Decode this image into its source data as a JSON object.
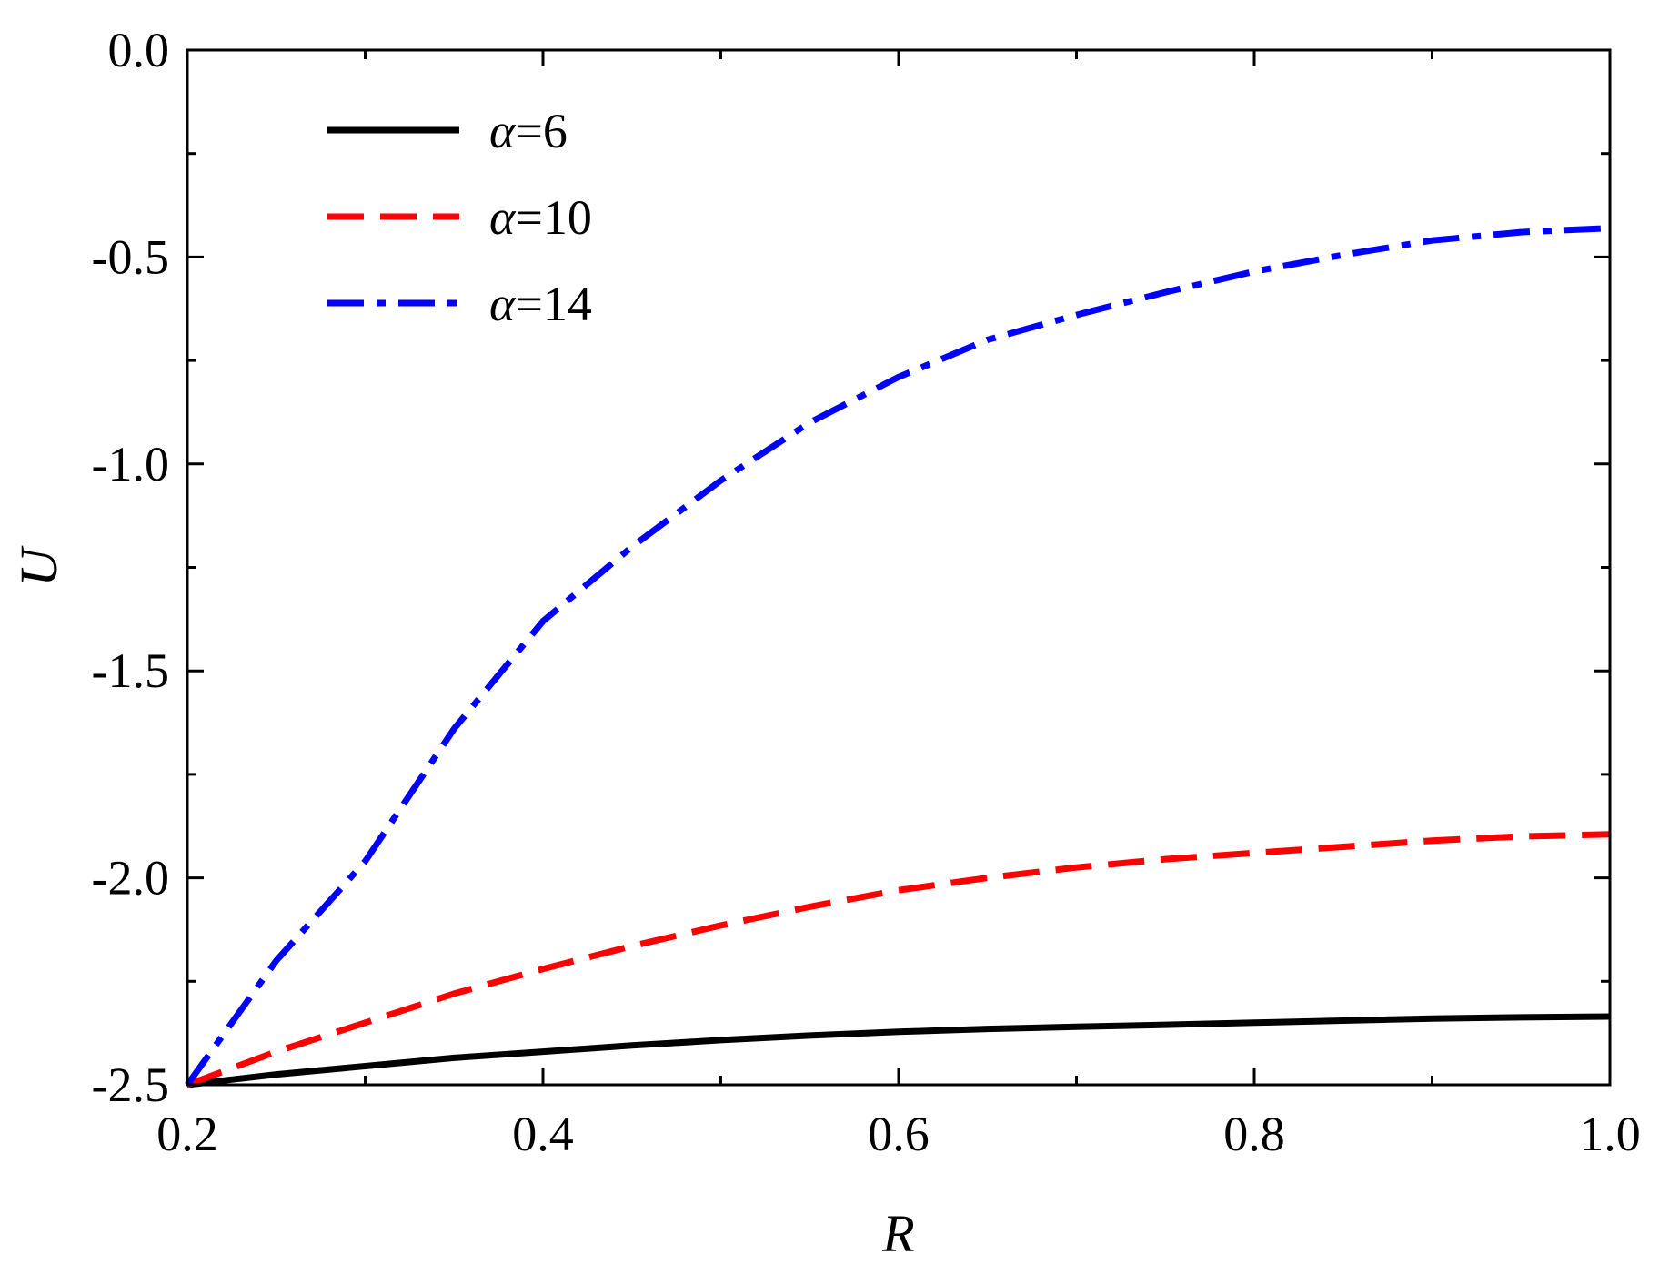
{
  "chart_data": {
    "type": "line",
    "xlabel": "R",
    "ylabel": "U",
    "xlim": [
      0.2,
      1.0
    ],
    "ylim": [
      -2.5,
      0.0
    ],
    "x_ticks": [
      "0.2",
      "0.4",
      "0.6",
      "0.8",
      "1.0"
    ],
    "y_ticks": [
      "0.0",
      "-0.5",
      "-1.0",
      "-1.5",
      "-2.0",
      "-2.5"
    ],
    "x_tick_values": [
      0.2,
      0.4,
      0.6,
      0.8,
      1.0
    ],
    "y_tick_values": [
      0.0,
      -0.5,
      -1.0,
      -1.5,
      -2.0,
      -2.5
    ],
    "x_minor_tick_values": [
      0.3,
      0.5,
      0.7,
      0.9
    ],
    "y_minor_tick_values": [
      -0.25,
      -0.75,
      -1.25,
      -1.75,
      -2.25
    ],
    "grid": false,
    "legend_position": "top-left",
    "x": [
      0.2,
      0.25,
      0.3,
      0.35,
      0.4,
      0.45,
      0.5,
      0.55,
      0.6,
      0.65,
      0.7,
      0.75,
      0.8,
      0.85,
      0.9,
      0.95,
      1.0
    ],
    "series": [
      {
        "name": "6",
        "greek": "α",
        "eq": "=",
        "color": "#000000",
        "style": "solid",
        "values": [
          -2.5,
          -2.475,
          -2.455,
          -2.435,
          -2.42,
          -2.405,
          -2.392,
          -2.381,
          -2.372,
          -2.365,
          -2.36,
          -2.355,
          -2.35,
          -2.345,
          -2.34,
          -2.337,
          -2.335
        ]
      },
      {
        "name": "10",
        "greek": "α",
        "eq": "=",
        "color": "#ff0000",
        "style": "dashed",
        "values": [
          -2.5,
          -2.42,
          -2.35,
          -2.28,
          -2.22,
          -2.165,
          -2.115,
          -2.07,
          -2.03,
          -2.0,
          -1.975,
          -1.955,
          -1.94,
          -1.925,
          -1.91,
          -1.9,
          -1.895
        ]
      },
      {
        "name": "14",
        "greek": "α",
        "eq": "=",
        "color": "#0000ff",
        "style": "dashdot",
        "values": [
          -2.5,
          -2.2,
          -1.96,
          -1.64,
          -1.38,
          -1.2,
          -1.04,
          -0.9,
          -0.79,
          -0.7,
          -0.64,
          -0.585,
          -0.535,
          -0.495,
          -0.46,
          -0.44,
          -0.43
        ]
      }
    ]
  }
}
